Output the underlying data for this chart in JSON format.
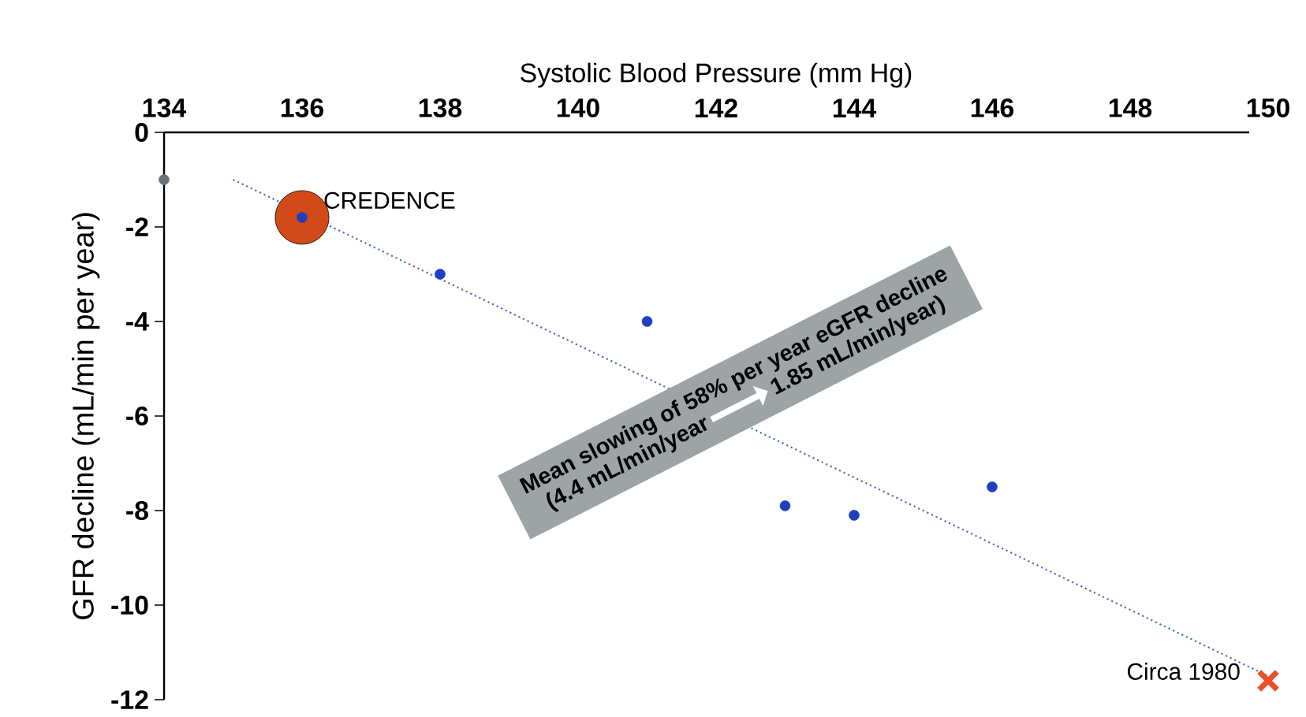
{
  "chart_data": {
    "type": "scatter",
    "xlabel": "Systolic Blood Pressure (mm Hg)",
    "ylabel": "GFR decline (mL/min per year)",
    "xlim": [
      134,
      150
    ],
    "xticks": [
      134,
      136,
      138,
      140,
      142,
      144,
      146,
      148,
      150
    ],
    "ylim": [
      -12,
      0
    ],
    "yticks": [
      0,
      -2,
      -4,
      -6,
      -8,
      -10,
      -12
    ],
    "grid": false,
    "series": [
      {
        "type": "line",
        "color": "#4a6fb0",
        "line_style": "dotted",
        "marker": "none",
        "x": [
          135,
          150
        ],
        "values": [
          -1.0,
          -11.5
        ]
      },
      {
        "type": "bubble",
        "color": "#d24a1a",
        "x": [
          136
        ],
        "values": [
          -1.8
        ],
        "sizes": [
          1
        ]
      },
      {
        "color": "#6b7378",
        "marker": "circle",
        "x": [
          134
        ],
        "values": [
          -1.0
        ]
      },
      {
        "color": "#1f3fbf",
        "marker": "circle",
        "x": [
          136,
          138,
          141,
          143,
          144,
          146
        ],
        "values": [
          -1.8,
          -3.0,
          -4.0,
          -7.9,
          -8.1,
          -7.5
        ]
      },
      {
        "color": "#e8502a",
        "marker": "cross",
        "x": [
          150
        ],
        "values": [
          -11.6
        ]
      }
    ],
    "annotations": [
      {
        "text": "CREDENCE",
        "x": 136,
        "y": -1.8
      },
      {
        "text": "Circa 1980",
        "x": 150,
        "y": -11.6
      },
      "Mean slowing of 58% per year eGFR decline",
      "(4.4 mL/min/year",
      "1.85 mL/min/year)"
    ]
  }
}
